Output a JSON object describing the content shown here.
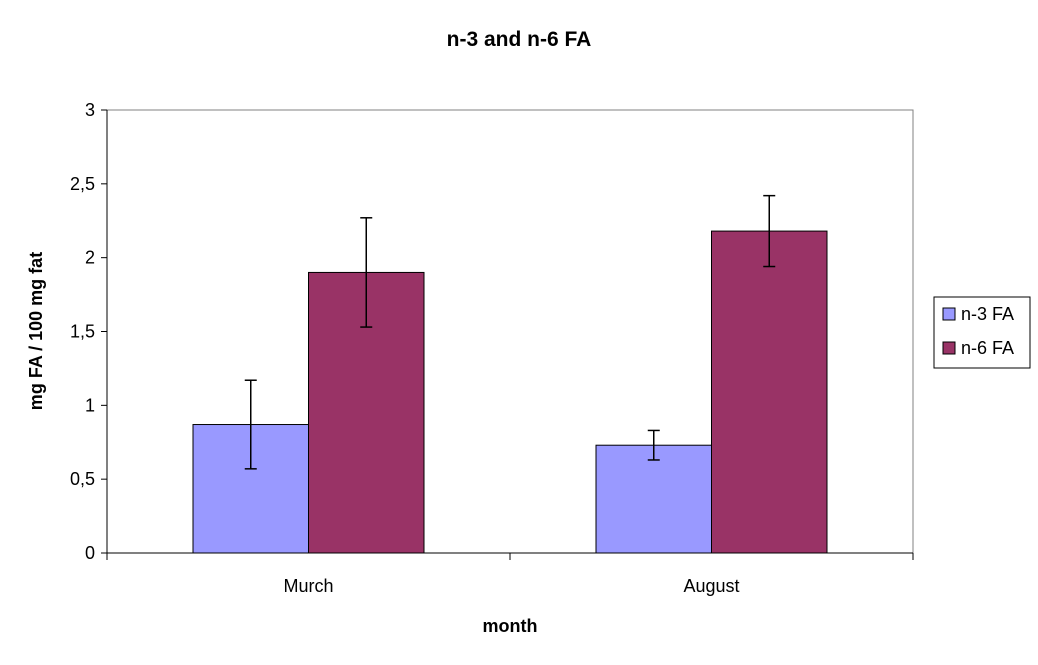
{
  "chart_data": {
    "type": "bar",
    "title": "n-3 and n-6 FA",
    "xlabel": "month",
    "ylabel": "mg FA / 100 mg fat",
    "categories": [
      "Murch",
      "August"
    ],
    "ylim": [
      0,
      3
    ],
    "yticks": [
      0,
      0.5,
      1,
      1.5,
      2,
      2.5,
      3
    ],
    "ytick_labels": [
      "0",
      "0,5",
      "1",
      "1,5",
      "2",
      "2,5",
      "3"
    ],
    "grid": false,
    "legend_position": "right",
    "series": [
      {
        "name": "n-3 FA",
        "values": [
          0.87,
          0.73
        ],
        "errors": [
          0.3,
          0.1
        ],
        "color": "#9999ff"
      },
      {
        "name": "n-6 FA",
        "values": [
          1.9,
          2.18
        ],
        "errors": [
          0.37,
          0.24
        ],
        "color": "#993366"
      }
    ]
  }
}
